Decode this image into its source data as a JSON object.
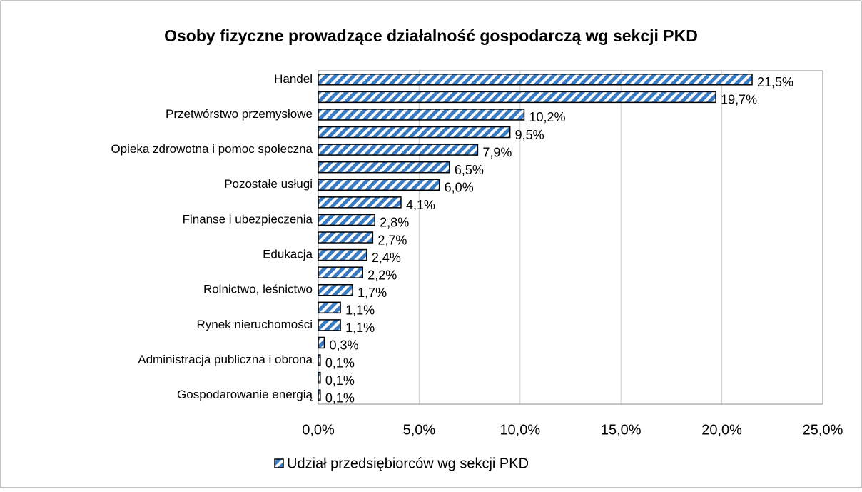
{
  "chart_data": {
    "type": "hbar",
    "title": "Osoby fizyczne prowadzące działalność gospodarczą wg sekcji PKD",
    "categories": [
      "Handel",
      null,
      "Przetwórstwo przemysłowe",
      null,
      "Opieka zdrowotna i pomoc społeczna",
      null,
      "Pozostałe usługi",
      null,
      "Finanse i ubezpieczenia",
      null,
      "Edukacja",
      null,
      "Rolnictwo, leśnictwo",
      null,
      "Rynek nieruchomości",
      null,
      "Administracja publiczna i obrona",
      null,
      "Gospodarowanie energią"
    ],
    "series": [
      {
        "name": "Udział przedsiębiorców wg sekcji PKD",
        "color": "#3a7cc4",
        "values": [
          21.5,
          19.7,
          10.2,
          9.5,
          7.9,
          6.5,
          6.0,
          4.1,
          2.8,
          2.7,
          2.4,
          2.2,
          1.7,
          1.1,
          1.1,
          0.3,
          0.1,
          0.1,
          0.1
        ],
        "value_labels": [
          "21,5%",
          "19,7%",
          "10,2%",
          "9,5%",
          "7,9%",
          "6,5%",
          "6,0%",
          "4,1%",
          "2,8%",
          "2,7%",
          "2,4%",
          "2,2%",
          "1,7%",
          "1,1%",
          "1,1%",
          "0,3%",
          "0,1%",
          "0,1%",
          "0,1%"
        ]
      }
    ],
    "xlim": [
      0,
      25
    ],
    "xticks": [
      {
        "value": 0,
        "label": "0,0%"
      },
      {
        "value": 5,
        "label": "5,0%"
      },
      {
        "value": 10,
        "label": "10,0%"
      },
      {
        "value": 15,
        "label": "15,0%"
      },
      {
        "value": 20,
        "label": "20,0%"
      },
      {
        "value": 25,
        "label": "25,0%"
      }
    ],
    "grid": true,
    "legend": "bottom"
  }
}
